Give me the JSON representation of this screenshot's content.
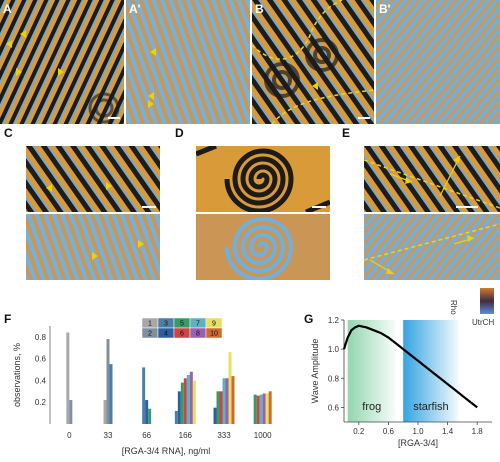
{
  "figure": {
    "panels": [
      {
        "id": "A",
        "label": "A"
      },
      {
        "id": "A2",
        "label": "A'"
      },
      {
        "id": "B",
        "label": "B"
      },
      {
        "id": "B2",
        "label": "B'"
      },
      {
        "id": "C",
        "label": "C"
      },
      {
        "id": "D",
        "label": "D"
      },
      {
        "id": "E",
        "label": "E"
      },
      {
        "id": "F",
        "label": "F"
      },
      {
        "id": "G",
        "label": "G"
      }
    ],
    "colorbar": {
      "top_label": "Rho",
      "bottom_label": "UtrCH"
    },
    "colors": {
      "orange": "#d99a3a",
      "blue": "#5fa7d8",
      "dark": "#1d1a18",
      "arrow": "#f0d000",
      "dashed": "#f2d21e",
      "frog_band": "#7fcfa0",
      "starfish_band": "#3aa8e0"
    }
  },
  "chart_data": [
    {
      "type": "bar",
      "ylabel": "observations, %",
      "xlabel": "[RGA-3/4 RNA], ng/ml",
      "categories": [
        "0",
        "33",
        "66",
        "166",
        "333",
        "1000"
      ],
      "ylim": [
        0,
        0.9
      ],
      "yticks": [
        "0.2",
        "0.4",
        "0.6",
        "0.8"
      ],
      "legend": {
        "placement": "top-center",
        "entries": [
          "1",
          "2",
          "3",
          "4",
          "5",
          "6",
          "7",
          "8",
          "9",
          "10"
        ]
      },
      "series": [
        {
          "name": "1",
          "color": "#a8a8a8",
          "values": [
            0.84,
            0.22,
            0.0,
            0.0,
            0.0,
            0.0
          ]
        },
        {
          "name": "2",
          "color": "#7f8fa0",
          "values": [
            0.22,
            0.78,
            0.0,
            0.0,
            0.0,
            0.0
          ]
        },
        {
          "name": "3",
          "color": "#4d7fa6",
          "values": [
            0.0,
            0.55,
            0.52,
            0.12,
            0.0,
            0.0
          ]
        },
        {
          "name": "4",
          "color": "#2c5fa0",
          "values": [
            0.0,
            0.0,
            0.22,
            0.3,
            0.15,
            0.0
          ]
        },
        {
          "name": "5",
          "color": "#3a9a66",
          "values": [
            0.0,
            0.0,
            0.14,
            0.38,
            0.3,
            0.27
          ]
        },
        {
          "name": "6",
          "color": "#cc4444",
          "values": [
            0.0,
            0.0,
            0.0,
            0.42,
            0.3,
            0.26
          ]
        },
        {
          "name": "7",
          "color": "#5fb0c0",
          "values": [
            0.0,
            0.0,
            0.0,
            0.45,
            0.42,
            0.27
          ]
        },
        {
          "name": "8",
          "color": "#9a5fb0",
          "values": [
            0.0,
            0.0,
            0.0,
            0.48,
            0.42,
            0.28
          ]
        },
        {
          "name": "9",
          "color": "#e8e060",
          "values": [
            0.0,
            0.0,
            0.0,
            0.4,
            0.66,
            0.28
          ]
        },
        {
          "name": "10",
          "color": "#d06a2c",
          "values": [
            0.0,
            0.0,
            0.0,
            0.0,
            0.44,
            0.3
          ]
        }
      ]
    },
    {
      "type": "line",
      "ylabel": "Wave Amplitude",
      "xlabel": "[RGA-3/4]",
      "xlim": [
        0,
        2.0
      ],
      "ylim": [
        0.5,
        1.2
      ],
      "xticks": [
        "0.2",
        "0.6",
        "1.0",
        "1.4",
        "1.8"
      ],
      "yticks": [
        "0.6",
        "0.8",
        "1.0",
        "1.2"
      ],
      "regions": [
        {
          "label": "frog",
          "x": [
            0.05,
            0.7
          ]
        },
        {
          "label": "starfish",
          "x": [
            0.8,
            1.55
          ]
        }
      ],
      "x": [
        0.0,
        0.05,
        0.1,
        0.15,
        0.2,
        0.25,
        0.3,
        0.4,
        0.5,
        0.6,
        0.7,
        0.8,
        0.9,
        1.0,
        1.1,
        1.2,
        1.3,
        1.4,
        1.5,
        1.6,
        1.7,
        1.8
      ],
      "y": [
        1.0,
        1.08,
        1.13,
        1.15,
        1.16,
        1.155,
        1.15,
        1.13,
        1.11,
        1.08,
        1.04,
        1.0,
        0.96,
        0.92,
        0.88,
        0.84,
        0.8,
        0.76,
        0.72,
        0.68,
        0.64,
        0.6
      ]
    }
  ]
}
